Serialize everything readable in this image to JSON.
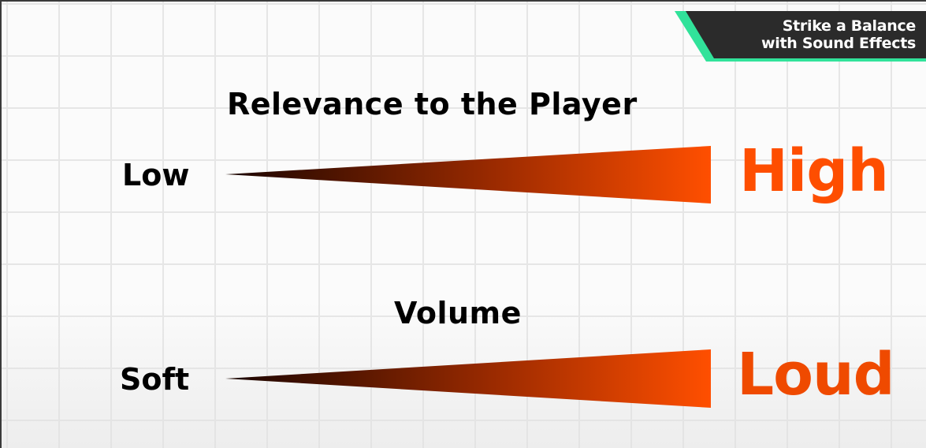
{
  "banner": {
    "line1": "Strike a Balance",
    "line2": "with Sound Effects",
    "accent_color": "#31e29a",
    "background_color": "#2b2b2b"
  },
  "relevance_scale": {
    "heading": "Relevance to the Player",
    "low_label": "Low",
    "high_label": "High"
  },
  "volume_scale": {
    "heading": "Volume",
    "low_label": "Soft",
    "high_label": "Loud"
  },
  "colors": {
    "wedge_start": "#1a0500",
    "wedge_end": "#ff4f00",
    "high_label": "#fe4e00",
    "loud_label": "#ef4a00"
  }
}
